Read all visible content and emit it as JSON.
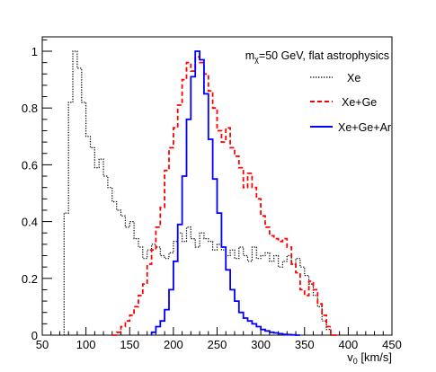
{
  "chart_data": {
    "type": "line",
    "title": "",
    "xlabel": "v_0 [km/s]",
    "xlabel_main": "v",
    "xlabel_sub": "0",
    "xlabel_rest": " [km/s]",
    "ylabel": "",
    "xlim": [
      50,
      450
    ],
    "ylim": [
      0,
      1.05
    ],
    "xticks": [
      "50",
      "100",
      "150",
      "200",
      "250",
      "300",
      "350",
      "400",
      "450"
    ],
    "yticks": [
      "0",
      "0.2",
      "0.4",
      "0.6",
      "0.8",
      "1"
    ],
    "annotation": {
      "main": "m",
      "sub": "χ",
      "rest": "=50 GeV, flat astrophysics"
    },
    "legend_position": "top-right",
    "bin_width": 5,
    "series": [
      {
        "name": "Xe",
        "color": "#000000",
        "style": "dotted",
        "x": [
          75,
          80,
          85,
          90,
          95,
          100,
          105,
          110,
          115,
          120,
          125,
          130,
          135,
          140,
          145,
          150,
          155,
          160,
          165,
          170,
          175,
          180,
          185,
          190,
          195,
          200,
          205,
          210,
          215,
          220,
          225,
          230,
          235,
          240,
          245,
          250,
          255,
          260,
          265,
          270,
          275,
          280,
          285,
          290,
          295,
          300,
          305,
          310,
          315,
          320,
          325,
          330,
          335,
          340,
          345,
          350,
          355,
          360,
          365,
          370,
          375,
          380
        ],
        "y": [
          0.43,
          0.82,
          1.0,
          0.94,
          0.82,
          0.7,
          0.66,
          0.59,
          0.62,
          0.56,
          0.52,
          0.47,
          0.44,
          0.42,
          0.38,
          0.4,
          0.34,
          0.31,
          0.27,
          0.3,
          0.32,
          0.31,
          0.28,
          0.27,
          0.29,
          0.33,
          0.36,
          0.33,
          0.38,
          0.34,
          0.31,
          0.36,
          0.34,
          0.33,
          0.3,
          0.32,
          0.3,
          0.28,
          0.3,
          0.27,
          0.31,
          0.28,
          0.26,
          0.31,
          0.27,
          0.28,
          0.29,
          0.26,
          0.28,
          0.24,
          0.26,
          0.28,
          0.25,
          0.27,
          0.24,
          0.21,
          0.18,
          0.14,
          0.1,
          0.05,
          0.02,
          0.0
        ]
      },
      {
        "name": "Xe+Ge",
        "color": "#ff0000",
        "style": "dashed",
        "x": [
          130,
          135,
          140,
          145,
          150,
          155,
          160,
          165,
          170,
          175,
          180,
          185,
          190,
          195,
          200,
          205,
          210,
          215,
          220,
          225,
          230,
          235,
          240,
          245,
          250,
          255,
          260,
          265,
          270,
          275,
          280,
          285,
          290,
          295,
          300,
          305,
          310,
          315,
          320,
          325,
          330,
          335,
          340,
          345,
          350,
          355,
          360,
          365,
          370,
          375,
          380,
          385
        ],
        "y": [
          0.0,
          0.01,
          0.03,
          0.05,
          0.07,
          0.1,
          0.14,
          0.18,
          0.25,
          0.3,
          0.38,
          0.45,
          0.58,
          0.66,
          0.73,
          0.81,
          0.9,
          0.96,
          0.93,
          0.98,
          0.96,
          0.92,
          0.86,
          0.8,
          0.72,
          0.68,
          0.73,
          0.66,
          0.63,
          0.59,
          0.52,
          0.57,
          0.52,
          0.48,
          0.42,
          0.38,
          0.35,
          0.34,
          0.33,
          0.34,
          0.31,
          0.25,
          0.22,
          0.16,
          0.14,
          0.19,
          0.16,
          0.11,
          0.07,
          0.03,
          0.0,
          0.0
        ]
      },
      {
        "name": "Xe+Ge+Ar",
        "color": "#0000ff",
        "style": "solid",
        "x": [
          175,
          180,
          185,
          190,
          195,
          200,
          205,
          210,
          215,
          220,
          225,
          230,
          235,
          240,
          245,
          250,
          255,
          260,
          265,
          270,
          275,
          280,
          285,
          290,
          295,
          300,
          305,
          310,
          315,
          320,
          325,
          330,
          335,
          340
        ],
        "y": [
          0.01,
          0.03,
          0.05,
          0.09,
          0.16,
          0.26,
          0.39,
          0.56,
          0.76,
          0.91,
          1.0,
          0.97,
          0.85,
          0.69,
          0.55,
          0.43,
          0.31,
          0.23,
          0.16,
          0.12,
          0.08,
          0.06,
          0.05,
          0.04,
          0.03,
          0.02,
          0.015,
          0.01,
          0.008,
          0.005,
          0.003,
          0.002,
          0.001,
          0.0
        ]
      }
    ]
  }
}
